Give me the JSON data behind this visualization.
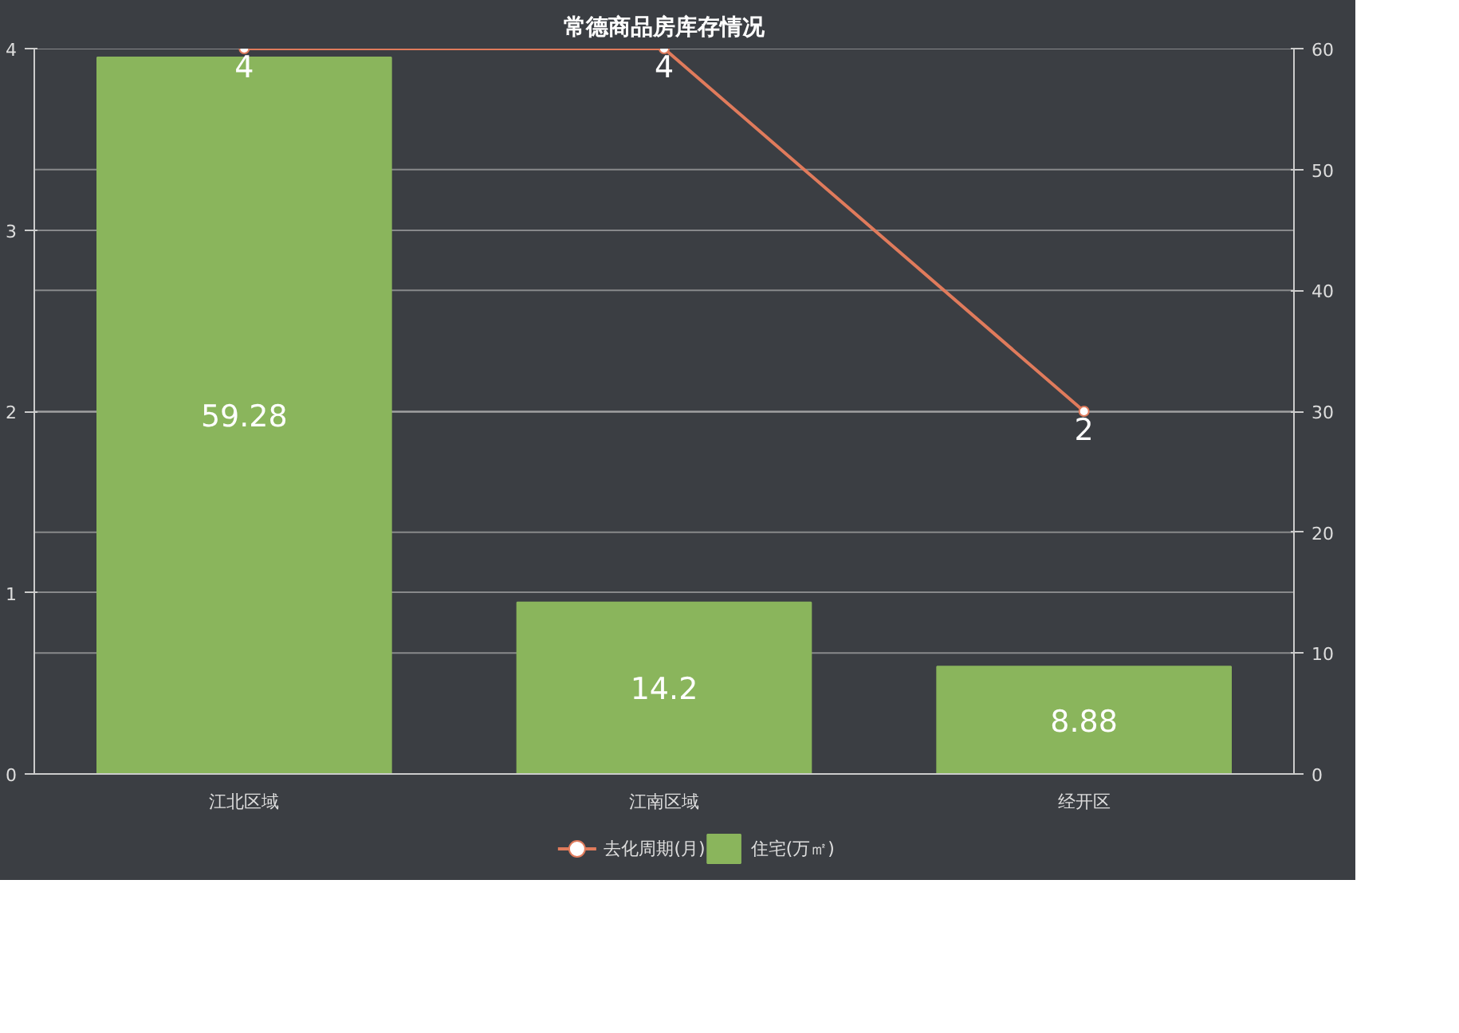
{
  "chart_data": {
    "type": "bar",
    "title": "常德商品房库存情况",
    "categories": [
      "江北区域",
      "江南区域",
      "经开区"
    ],
    "series": [
      {
        "name": "去化周期(月)",
        "type": "line",
        "color": "#e07b5c",
        "values": [
          4,
          4,
          2
        ],
        "axis": "y",
        "marker": "circle"
      },
      {
        "name": "住宅(万㎡)",
        "type": "bar",
        "color": "#8ab55c",
        "values": [
          59.28,
          14.2,
          8.88
        ],
        "axis": "y2"
      }
    ],
    "ylim": [
      0,
      4
    ],
    "yticks": [
      0,
      1,
      2,
      3,
      4
    ],
    "y2lim": [
      0,
      60
    ],
    "y2ticks": [
      0,
      10,
      20,
      30,
      40,
      50,
      60
    ],
    "grid": "y",
    "legend": "bottom",
    "data_labels": true
  }
}
